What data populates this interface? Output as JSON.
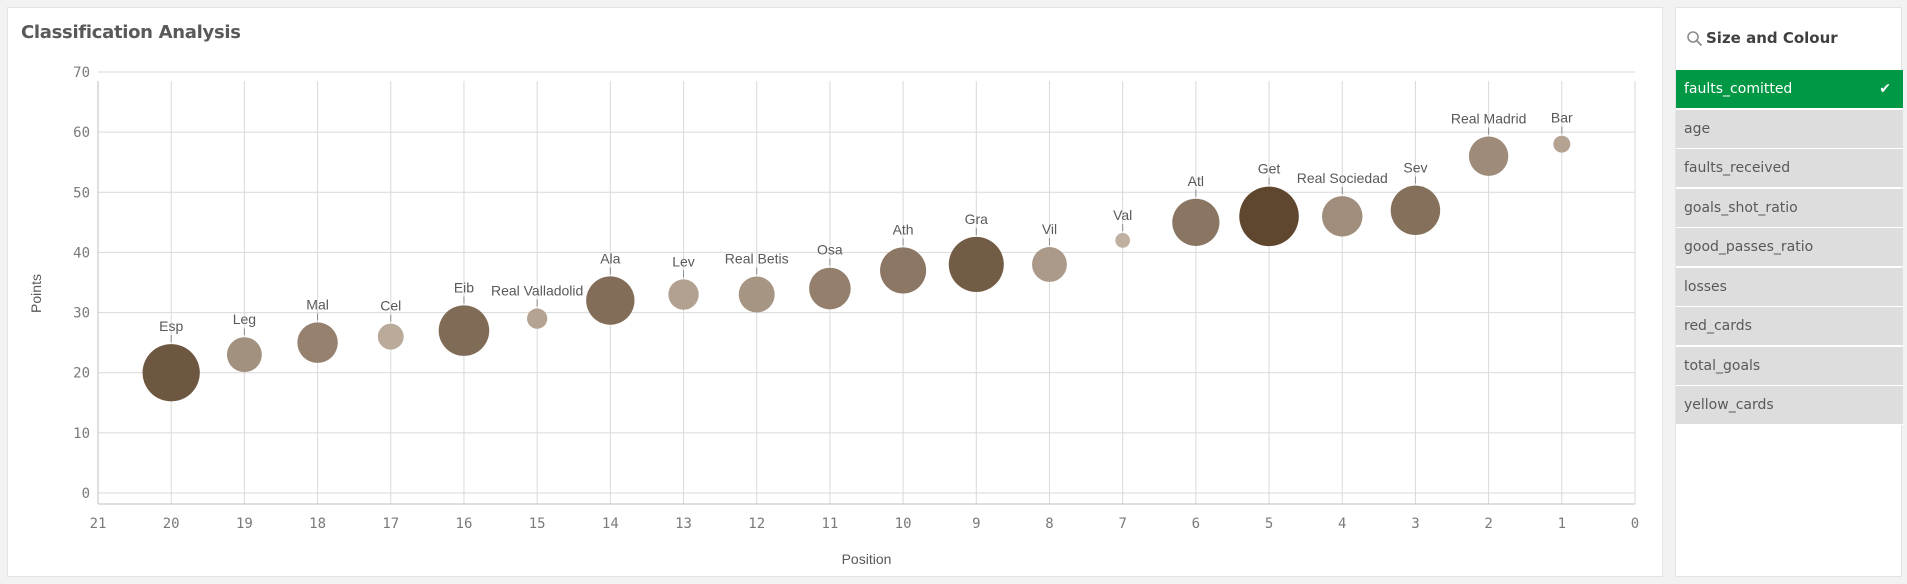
{
  "title": "Classification Analysis",
  "filter": {
    "title": "Size and Colour",
    "items": [
      {
        "label": "faults_comitted",
        "selected": true
      },
      {
        "label": "age",
        "selected": false
      },
      {
        "label": "faults_received",
        "selected": false
      },
      {
        "label": "goals_shot_ratio",
        "selected": false
      },
      {
        "label": "good_passes_ratio",
        "selected": false
      },
      {
        "label": "losses",
        "selected": false
      },
      {
        "label": "red_cards",
        "selected": false
      },
      {
        "label": "total_goals",
        "selected": false
      },
      {
        "label": "yellow_cards",
        "selected": false
      }
    ]
  },
  "colors": {
    "selected": "#009845",
    "light_bubble": "#cbbcae",
    "dark_bubble": "#5a4129"
  },
  "chart_data": {
    "type": "scatter",
    "xlabel": "Position",
    "ylabel": "Points",
    "xlim": [
      21,
      0
    ],
    "ylim": [
      0,
      70
    ],
    "x_ticks": [
      21,
      20,
      19,
      18,
      17,
      16,
      15,
      14,
      13,
      12,
      11,
      10,
      9,
      8,
      7,
      6,
      5,
      4,
      3,
      2,
      1,
      0
    ],
    "y_ticks": [
      0,
      10,
      20,
      30,
      40,
      50,
      60,
      70
    ],
    "grid": true,
    "points": [
      {
        "label": "Esp",
        "x": 20,
        "y": 20,
        "size": 0.88,
        "shade": 0.82
      },
      {
        "label": "Leg",
        "x": 19,
        "y": 23,
        "size": 0.48,
        "shade": 0.35
      },
      {
        "label": "Mal",
        "x": 18,
        "y": 25,
        "size": 0.58,
        "shade": 0.48
      },
      {
        "label": "Cel",
        "x": 17,
        "y": 26,
        "size": 0.32,
        "shade": 0.15
      },
      {
        "label": "Eib",
        "x": 16,
        "y": 27,
        "size": 0.76,
        "shade": 0.66
      },
      {
        "label": "Real Valladolid",
        "x": 15,
        "y": 29,
        "size": 0.22,
        "shade": 0.2
      },
      {
        "label": "Ala",
        "x": 14,
        "y": 32,
        "size": 0.72,
        "shade": 0.64
      },
      {
        "label": "Lev",
        "x": 13,
        "y": 33,
        "size": 0.4,
        "shade": 0.22
      },
      {
        "label": "Real Betis",
        "x": 12,
        "y": 33,
        "size": 0.5,
        "shade": 0.32
      },
      {
        "label": "Osa",
        "x": 11,
        "y": 34,
        "size": 0.6,
        "shade": 0.5
      },
      {
        "label": "Ath",
        "x": 10,
        "y": 37,
        "size": 0.68,
        "shade": 0.56
      },
      {
        "label": "Gra",
        "x": 9,
        "y": 38,
        "size": 0.84,
        "shade": 0.78
      },
      {
        "label": "Vil",
        "x": 8,
        "y": 38,
        "size": 0.48,
        "shade": 0.28
      },
      {
        "label": "Val",
        "x": 7,
        "y": 42,
        "size": 0.12,
        "shade": 0.1
      },
      {
        "label": "Atl",
        "x": 6,
        "y": 45,
        "size": 0.7,
        "shade": 0.58
      },
      {
        "label": "Get",
        "x": 5,
        "y": 46,
        "size": 0.92,
        "shade": 0.96
      },
      {
        "label": "Real Sociedad",
        "x": 4,
        "y": 46,
        "size": 0.58,
        "shade": 0.38
      },
      {
        "label": "Sev",
        "x": 3,
        "y": 47,
        "size": 0.74,
        "shade": 0.62
      },
      {
        "label": "Real Madrid",
        "x": 2,
        "y": 56,
        "size": 0.56,
        "shade": 0.4
      },
      {
        "label": "Bar",
        "x": 1,
        "y": 58,
        "size": 0.16,
        "shade": 0.2
      }
    ]
  }
}
